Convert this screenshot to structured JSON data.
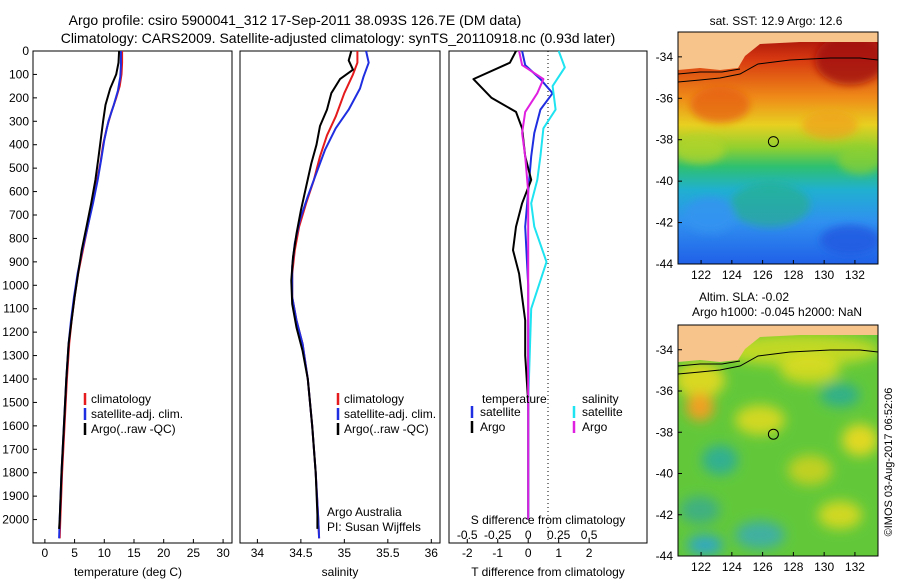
{
  "title": {
    "line1": "Argo profile: csiro 5900041_312 17-Sep-2011 38.093S 126.7E (DM data)",
    "line2": "Climatology: CARS2009. Satellite-adjusted climatology: synTS_20110918.nc (0.93d later)"
  },
  "colors": {
    "clim": "#e41a1c",
    "sat": "#1f2ee0",
    "argo": "#000000",
    "cyan": "#1ee3f0",
    "magenta": "#e020e0",
    "land": "#f7c48c"
  },
  "watermark": "©IMOS 03-Aug-2017 06:52:06",
  "chart_data": [
    {
      "type": "line",
      "name": "temperature",
      "xlabel": "temperature (deg C)",
      "ylabel": "",
      "xlim": [
        -2,
        31.5
      ],
      "ylim": [
        2100,
        0
      ],
      "xticks": [
        "0",
        "5",
        "10",
        "15",
        "20",
        "25",
        "30"
      ],
      "xtick_values": [
        0,
        5,
        10,
        15,
        20,
        25,
        30
      ],
      "yticks": [
        "0",
        "100",
        "200",
        "300",
        "400",
        "500",
        "600",
        "700",
        "800",
        "900",
        "1000",
        "1100",
        "1200",
        "1300",
        "1400",
        "1500",
        "1600",
        "1700",
        "1800",
        "1900",
        "2000"
      ],
      "ytick_values": [
        0,
        100,
        200,
        300,
        400,
        500,
        600,
        700,
        800,
        900,
        1000,
        1100,
        1200,
        1300,
        1400,
        1500,
        1600,
        1700,
        1800,
        1900,
        2000
      ],
      "legend": [
        "climatology",
        "satellite-adj. clim.",
        "Argo(..raw -QC)"
      ],
      "series": [
        {
          "name": "climatology",
          "color_key": "clim",
          "points": [
            [
              13.0,
              0
            ],
            [
              13.0,
              50
            ],
            [
              12.9,
              100
            ],
            [
              12.6,
              150
            ],
            [
              12.0,
              200
            ],
            [
              11.2,
              260
            ],
            [
              10.4,
              330
            ],
            [
              9.8,
              400
            ],
            [
              9.4,
              470
            ],
            [
              8.8,
              550
            ],
            [
              8.0,
              650
            ],
            [
              7.2,
              750
            ],
            [
              6.4,
              850
            ],
            [
              5.6,
              950
            ],
            [
              5.0,
              1050
            ],
            [
              4.5,
              1150
            ],
            [
              4.1,
              1250
            ],
            [
              3.7,
              1400
            ],
            [
              3.3,
              1600
            ],
            [
              2.9,
              1800
            ],
            [
              2.6,
              2000
            ],
            [
              2.5,
              2080
            ]
          ]
        },
        {
          "name": "satellite-adj. clim.",
          "color_key": "sat",
          "points": [
            [
              12.8,
              0
            ],
            [
              12.8,
              60
            ],
            [
              12.7,
              110
            ],
            [
              12.3,
              170
            ],
            [
              11.6,
              230
            ],
            [
              10.7,
              300
            ],
            [
              10.0,
              380
            ],
            [
              9.5,
              460
            ],
            [
              8.9,
              550
            ],
            [
              8.1,
              650
            ],
            [
              7.2,
              750
            ],
            [
              6.3,
              850
            ],
            [
              5.5,
              950
            ],
            [
              4.9,
              1050
            ],
            [
              4.4,
              1150
            ],
            [
              4.0,
              1250
            ],
            [
              3.6,
              1400
            ],
            [
              3.2,
              1600
            ],
            [
              2.8,
              1800
            ],
            [
              2.5,
              2000
            ],
            [
              2.4,
              2080
            ]
          ]
        },
        {
          "name": "Argo(..raw -QC)",
          "color_key": "argo",
          "points": [
            [
              12.5,
              0
            ],
            [
              12.4,
              50
            ],
            [
              12.0,
              100
            ],
            [
              11.0,
              160
            ],
            [
              10.2,
              230
            ],
            [
              9.8,
              300
            ],
            [
              9.4,
              380
            ],
            [
              9.0,
              460
            ],
            [
              8.5,
              550
            ],
            [
              7.8,
              650
            ],
            [
              7.0,
              750
            ],
            [
              6.2,
              850
            ],
            [
              5.6,
              950
            ],
            [
              5.0,
              1050
            ],
            [
              4.5,
              1150
            ],
            [
              4.0,
              1250
            ],
            [
              3.6,
              1400
            ],
            [
              3.2,
              1600
            ],
            [
              2.8,
              1800
            ],
            [
              2.5,
              2000
            ],
            [
              2.4,
              2040
            ]
          ]
        }
      ]
    },
    {
      "type": "line",
      "name": "salinity",
      "xlabel": "salinity",
      "xlim": [
        33.8,
        36.1
      ],
      "ylim": [
        2100,
        0
      ],
      "xticks": [
        "34",
        "34.5",
        "35",
        "35.5",
        "36"
      ],
      "xtick_values": [
        34,
        34.5,
        35,
        35.5,
        36
      ],
      "legend": [
        "climatology",
        "satellite-adj. clim.",
        "Argo(..raw -QC)"
      ],
      "annotation": [
        "Argo Australia",
        "PI: Susan Wijffels"
      ],
      "series": [
        {
          "name": "climatology",
          "color_key": "clim",
          "points": [
            [
              35.15,
              0
            ],
            [
              35.15,
              50
            ],
            [
              35.1,
              100
            ],
            [
              35.0,
              180
            ],
            [
              34.9,
              280
            ],
            [
              34.8,
              360
            ],
            [
              34.72,
              450
            ],
            [
              34.65,
              550
            ],
            [
              34.56,
              650
            ],
            [
              34.48,
              750
            ],
            [
              34.43,
              850
            ],
            [
              34.4,
              950
            ],
            [
              34.4,
              1050
            ],
            [
              34.45,
              1150
            ],
            [
              34.52,
              1250
            ],
            [
              34.58,
              1400
            ],
            [
              34.63,
              1600
            ],
            [
              34.67,
              1800
            ],
            [
              34.7,
              2000
            ],
            [
              34.71,
              2080
            ]
          ]
        },
        {
          "name": "satellite-adj. clim.",
          "color_key": "sat",
          "points": [
            [
              35.25,
              0
            ],
            [
              35.28,
              50
            ],
            [
              35.22,
              110
            ],
            [
              35.18,
              160
            ],
            [
              35.05,
              250
            ],
            [
              34.9,
              330
            ],
            [
              34.78,
              420
            ],
            [
              34.68,
              520
            ],
            [
              34.58,
              620
            ],
            [
              34.49,
              720
            ],
            [
              34.43,
              820
            ],
            [
              34.4,
              920
            ],
            [
              34.4,
              1050
            ],
            [
              34.45,
              1150
            ],
            [
              34.52,
              1250
            ],
            [
              34.58,
              1400
            ],
            [
              34.63,
              1600
            ],
            [
              34.67,
              1800
            ],
            [
              34.7,
              2000
            ],
            [
              34.71,
              2080
            ]
          ]
        },
        {
          "name": "Argo(..raw -QC)",
          "color_key": "argo",
          "points": [
            [
              35.08,
              0
            ],
            [
              35.05,
              40
            ],
            [
              35.1,
              80
            ],
            [
              34.95,
              120
            ],
            [
              34.85,
              180
            ],
            [
              34.8,
              250
            ],
            [
              34.72,
              320
            ],
            [
              34.68,
              400
            ],
            [
              34.62,
              480
            ],
            [
              34.56,
              580
            ],
            [
              34.5,
              680
            ],
            [
              34.45,
              780
            ],
            [
              34.41,
              880
            ],
            [
              34.39,
              980
            ],
            [
              34.4,
              1080
            ],
            [
              34.45,
              1180
            ],
            [
              34.52,
              1280
            ],
            [
              34.58,
              1400
            ],
            [
              34.63,
              1600
            ],
            [
              34.67,
              1800
            ],
            [
              34.69,
              1980
            ],
            [
              34.69,
              2040
            ]
          ]
        }
      ]
    },
    {
      "type": "line",
      "name": "differences",
      "xlabel": "T difference from climatology",
      "xlabel_top": "S difference from climatology",
      "xlim": [
        -2.6,
        3.9
      ],
      "ylim": [
        2100,
        0
      ],
      "xticks": [
        "-2",
        "-1",
        "0",
        "1",
        "2"
      ],
      "xtick_values": [
        -2,
        -1,
        0,
        1,
        2
      ],
      "sticks": [
        "-0.5",
        "-0.25",
        "0",
        "0.25",
        "0.5"
      ],
      "stick_values": [
        -2,
        -1,
        0,
        1,
        2
      ],
      "legend_left_title": "temperature",
      "legend_right_title": "salinity",
      "legend_left": [
        "satellite",
        "Argo"
      ],
      "legend_right": [
        "satellite",
        "Argo"
      ],
      "series": [
        {
          "name": "T satellite",
          "color_key": "sat",
          "points": [
            [
              -0.2,
              0
            ],
            [
              -0.1,
              60
            ],
            [
              0.4,
              120
            ],
            [
              0.8,
              180
            ],
            [
              0.4,
              250
            ],
            [
              0.2,
              350
            ],
            [
              0.1,
              450
            ],
            [
              0.0,
              600
            ],
            [
              -0.1,
              750
            ],
            [
              0.0,
              1000
            ],
            [
              0.0,
              1500
            ],
            [
              0.0,
              2000
            ]
          ]
        },
        {
          "name": "T Argo",
          "color_key": "argo",
          "points": [
            [
              -0.4,
              0
            ],
            [
              -0.6,
              50
            ],
            [
              -1.8,
              120
            ],
            [
              -1.2,
              200
            ],
            [
              -0.4,
              260
            ],
            [
              -0.2,
              330
            ],
            [
              -0.1,
              450
            ],
            [
              0.1,
              550
            ],
            [
              -0.2,
              650
            ],
            [
              -0.4,
              750
            ],
            [
              -0.5,
              850
            ],
            [
              -0.3,
              950
            ],
            [
              -0.2,
              1050
            ],
            [
              -0.1,
              1150
            ],
            [
              -0.1,
              1300
            ],
            [
              0.0,
              1500
            ],
            [
              0.0,
              2000
            ]
          ]
        },
        {
          "name": "S satellite",
          "color_key": "cyan",
          "points": [
            [
              1.0,
              0
            ],
            [
              1.2,
              70
            ],
            [
              0.8,
              150
            ],
            [
              0.9,
              250
            ],
            [
              0.5,
              330
            ],
            [
              0.4,
              450
            ],
            [
              0.3,
              550
            ],
            [
              0.1,
              650
            ],
            [
              0.2,
              750
            ],
            [
              0.6,
              900
            ],
            [
              0.1,
              1100
            ],
            [
              0.0,
              1500
            ],
            [
              0.0,
              2000
            ]
          ]
        },
        {
          "name": "S Argo",
          "color_key": "magenta",
          "points": [
            [
              -0.3,
              0
            ],
            [
              -0.2,
              60
            ],
            [
              0.5,
              120
            ],
            [
              0.3,
              180
            ],
            [
              -0.1,
              260
            ],
            [
              -0.2,
              350
            ],
            [
              -0.1,
              450
            ],
            [
              0.0,
              600
            ],
            [
              0.0,
              800
            ],
            [
              0.0,
              1100
            ],
            [
              0.0,
              1500
            ],
            [
              0.0,
              2000
            ]
          ]
        }
      ]
    },
    {
      "type": "heatmap",
      "name": "sst_map",
      "title": "sat. SST: 12.9 Argo: 12.6",
      "xlim": [
        120.5,
        133.5
      ],
      "ylim": [
        -44,
        -32.8
      ],
      "xticks": [
        "122",
        "124",
        "126",
        "128",
        "130",
        "132"
      ],
      "xtick_values": [
        122,
        124,
        126,
        128,
        130,
        132
      ],
      "yticks": [
        "-34",
        "-36",
        "-38",
        "-40",
        "-42",
        "-44"
      ],
      "ytick_values": [
        -34,
        -36,
        -38,
        -40,
        -42,
        -44
      ],
      "marker": [
        126.7,
        -38.093
      ]
    },
    {
      "type": "heatmap",
      "name": "sla_map",
      "title_line1": "Altim. SLA: -0.02",
      "title_line2": "Argo h1000: -0.045 h2000: NaN",
      "xlim": [
        120.5,
        133.5
      ],
      "ylim": [
        -44,
        -32.8
      ],
      "xticks": [
        "122",
        "124",
        "126",
        "128",
        "130",
        "132"
      ],
      "xtick_values": [
        122,
        124,
        126,
        128,
        130,
        132
      ],
      "yticks": [
        "-34",
        "-36",
        "-38",
        "-40",
        "-42",
        "-44"
      ],
      "ytick_values": [
        -34,
        -36,
        -38,
        -40,
        -42,
        -44
      ],
      "marker": [
        126.7,
        -38.093
      ]
    }
  ]
}
